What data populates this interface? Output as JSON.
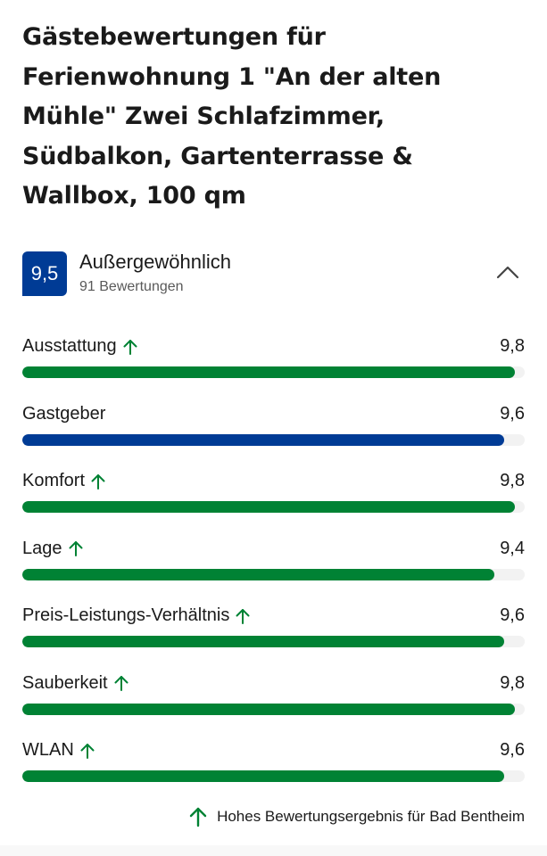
{
  "header": {
    "title": "Gästebewertungen für Ferienwohnung 1 \"An der alten Mühle\" Zwei Schlafzimmer, Südbalkon, Gartenterrasse & Wallbox, 100 qm"
  },
  "summary": {
    "score": "9,5",
    "label": "Außergewöhnlich",
    "count": "91 Bewertungen",
    "toggle_icon": "chevron-up-icon",
    "badge_color": "#003b95"
  },
  "categories": [
    {
      "label": "Ausstattung",
      "value": "9,8",
      "score": 9.8,
      "high": true,
      "color": "#008234"
    },
    {
      "label": "Gastgeber",
      "value": "9,6",
      "score": 9.6,
      "high": false,
      "color": "#003b95"
    },
    {
      "label": "Komfort",
      "value": "9,8",
      "score": 9.8,
      "high": true,
      "color": "#008234"
    },
    {
      "label": "Lage",
      "value": "9,4",
      "score": 9.4,
      "high": true,
      "color": "#008234"
    },
    {
      "label": "Preis-Leistungs-Verhältnis",
      "value": "9,6",
      "score": 9.6,
      "high": true,
      "color": "#008234"
    },
    {
      "label": "Sauberkeit",
      "value": "9,8",
      "score": 9.8,
      "high": true,
      "color": "#008234"
    },
    {
      "label": "WLAN",
      "value": "9,6",
      "score": 9.6,
      "high": true,
      "color": "#008234"
    }
  ],
  "legend": {
    "icon": "arrow-up-icon",
    "text": "Hohes Bewertungsergebnis für Bad Bentheim",
    "color": "#008234"
  },
  "colors": {
    "green": "#008234",
    "blue": "#003b95",
    "track": "#f2f2f2"
  }
}
